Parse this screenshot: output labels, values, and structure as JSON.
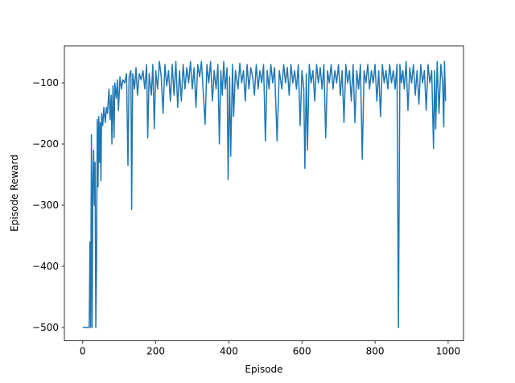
{
  "chart_data": {
    "type": "line",
    "xlabel": "Episode",
    "ylabel": "Episode Reward",
    "xlim": [
      -50,
      1042
    ],
    "ylim": [
      -521.8,
      -39.5
    ],
    "xticks": [
      0,
      200,
      400,
      600,
      800,
      1000
    ],
    "yticks": [
      {
        "value": -500,
        "label": "−500"
      },
      {
        "value": -400,
        "label": "−400"
      },
      {
        "value": -300,
        "label": "−300"
      },
      {
        "value": -200,
        "label": "−200"
      },
      {
        "value": -100,
        "label": "−100"
      }
    ],
    "series": [
      {
        "color": "#1f77b4",
        "x": [
          0,
          10,
          18,
          20,
          22,
          24,
          26,
          28,
          30,
          32,
          34,
          36,
          38,
          40,
          42,
          44,
          46,
          48,
          50,
          52,
          55,
          58,
          62,
          65,
          68,
          72,
          75,
          78,
          80,
          83,
          86,
          88,
          92,
          95,
          98,
          102,
          106,
          110,
          115,
          120,
          124,
          127,
          132,
          134,
          137,
          142,
          146,
          150,
          155,
          160,
          165,
          170,
          175,
          178,
          182,
          188,
          192,
          196,
          200,
          205,
          210,
          215,
          220,
          225,
          230,
          235,
          240,
          245,
          250,
          255,
          260,
          265,
          270,
          275,
          280,
          285,
          290,
          295,
          300,
          305,
          310,
          315,
          320,
          325,
          330,
          335,
          340,
          345,
          350,
          355,
          360,
          365,
          370,
          374,
          378,
          382,
          386,
          390,
          395,
          398,
          402,
          405,
          410,
          413,
          418,
          425,
          430,
          435,
          440,
          445,
          450,
          455,
          460,
          465,
          470,
          475,
          480,
          485,
          490,
          495,
          500,
          505,
          510,
          515,
          520,
          525,
          532,
          538,
          545,
          550,
          555,
          560,
          565,
          570,
          575,
          580,
          585,
          590,
          595,
          600,
          605,
          608,
          612,
          615,
          620,
          625,
          630,
          635,
          640,
          645,
          650,
          655,
          660,
          665,
          670,
          675,
          680,
          685,
          690,
          695,
          700,
          705,
          710,
          715,
          720,
          725,
          730,
          735,
          740,
          745,
          750,
          755,
          760,
          765,
          770,
          775,
          780,
          785,
          790,
          795,
          800,
          805,
          810,
          815,
          820,
          825,
          830,
          835,
          840,
          845,
          850,
          855,
          860,
          864,
          868,
          872,
          876,
          880,
          885,
          890,
          895,
          900,
          905,
          910,
          915,
          920,
          925,
          930,
          935,
          940,
          945,
          950,
          955,
          960,
          963,
          966,
          970,
          975,
          980,
          985,
          988,
          990,
          993
        ],
        "values": [
          -500,
          -500,
          -500,
          -360,
          -500,
          -185,
          -500,
          -260,
          -210,
          -300,
          -230,
          -500,
          -400,
          -160,
          -270,
          -155,
          -230,
          -165,
          -260,
          -150,
          -170,
          -140,
          -165,
          -140,
          -150,
          -110,
          -160,
          -120,
          -200,
          -105,
          -190,
          -100,
          -125,
          -95,
          -145,
          -90,
          -110,
          -95,
          -100,
          -85,
          -235,
          -90,
          -80,
          -307,
          -85,
          -110,
          -75,
          -120,
          -85,
          -95,
          -80,
          -110,
          -70,
          -190,
          -85,
          -120,
          -70,
          -175,
          -80,
          -110,
          -65,
          -90,
          -150,
          -70,
          -105,
          -80,
          -130,
          -70,
          -120,
          -65,
          -140,
          -80,
          -130,
          -70,
          -110,
          -75,
          -100,
          -65,
          -110,
          -75,
          -140,
          -70,
          -90,
          -65,
          -115,
          -168,
          -70,
          -100,
          -65,
          -130,
          -80,
          -110,
          -70,
          -200,
          -80,
          -120,
          -65,
          -110,
          -75,
          -258,
          -90,
          -220,
          -70,
          -155,
          -80,
          -110,
          -68,
          -100,
          -80,
          -130,
          -70,
          -110,
          -75,
          -90,
          -120,
          -70,
          -110,
          -80,
          -100,
          -70,
          -195,
          -80,
          -110,
          -70,
          -100,
          -75,
          -195,
          -80,
          -110,
          -70,
          -100,
          -75,
          -120,
          -70,
          -100,
          -80,
          -110,
          -70,
          -170,
          -80,
          -110,
          -240,
          -85,
          -210,
          -70,
          -100,
          -80,
          -130,
          -70,
          -100,
          -75,
          -110,
          -70,
          -190,
          -80,
          -100,
          -70,
          -110,
          -80,
          -100,
          -70,
          -120,
          -80,
          -165,
          -70,
          -100,
          -80,
          -130,
          -70,
          -165,
          -80,
          -110,
          -70,
          -225,
          -80,
          -100,
          -70,
          -110,
          -80,
          -100,
          -70,
          -130,
          -80,
          -155,
          -70,
          -100,
          -80,
          -110,
          -70,
          -100,
          -80,
          -110,
          -70,
          -500,
          -70,
          -100,
          -80,
          -110,
          -65,
          -145,
          -75,
          -100,
          -70,
          -120,
          -80,
          -135,
          -70,
          -100,
          -80,
          -145,
          -70,
          -100,
          -80,
          -207,
          -80,
          -175,
          -65,
          -150,
          -70,
          -100,
          -172,
          -65,
          -130
        ]
      }
    ]
  }
}
